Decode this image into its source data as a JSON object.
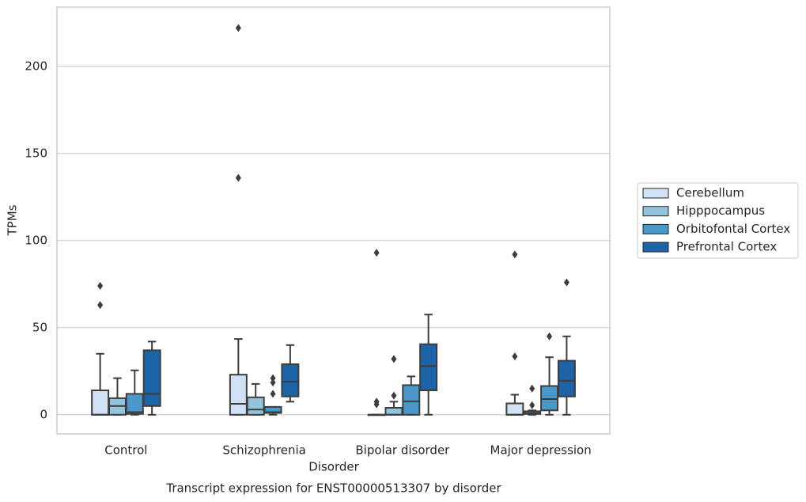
{
  "chart_data": {
    "type": "box",
    "title": "Transcript expression for ENST00000513307 by disorder",
    "xlabel": "Disorder",
    "ylabel": "TPMs",
    "categories": [
      "Control",
      "Schizophrenia",
      "Bipolar disorder",
      "Major depression"
    ],
    "ylim": [
      -11,
      234
    ],
    "yticks": [
      0,
      50,
      100,
      150,
      200
    ],
    "grid": true,
    "legend": "right",
    "series": [
      {
        "name": "Cerebellum",
        "color": "#cfe1f2",
        "values": [
          {
            "low": 0,
            "q1": 0,
            "median": 0,
            "q3": 14,
            "high": 35,
            "outliers": [
              74,
              63
            ]
          },
          {
            "low": 0,
            "q1": 0,
            "median": 6.3,
            "q3": 23,
            "high": 43.5,
            "outliers": [
              222,
              136
            ]
          },
          {
            "low": 0,
            "q1": 0,
            "median": 0,
            "q3": 0,
            "high": 0,
            "outliers": [
              93,
              7.5,
              6
            ]
          },
          {
            "low": 0,
            "q1": 0,
            "median": 0,
            "q3": 6.5,
            "high": 11.5,
            "outliers": [
              92,
              33.5
            ]
          }
        ]
      },
      {
        "name": "Hipppocampus",
        "color": "#93c4de",
        "values": [
          {
            "low": 0,
            "q1": 0,
            "median": 5,
            "q3": 9.5,
            "high": 21,
            "outliers": []
          },
          {
            "low": 0,
            "q1": 0,
            "median": 3,
            "q3": 10,
            "high": 17.7,
            "outliers": []
          },
          {
            "low": 0,
            "q1": 0,
            "median": 0,
            "q3": 4,
            "high": 7.5,
            "outliers": [
              32,
              11
            ]
          },
          {
            "low": 0,
            "q1": 0.5,
            "median": 1,
            "q3": 2,
            "high": 2.5,
            "outliers": [
              15,
              5.5
            ]
          }
        ]
      },
      {
        "name": "Orbitofontal Cortex",
        "color": "#4a98c9",
        "values": [
          {
            "low": 0,
            "q1": 0.5,
            "median": 1.5,
            "q3": 12,
            "high": 25.5,
            "outliers": []
          },
          {
            "low": 0,
            "q1": 1,
            "median": 1.5,
            "q3": 4.5,
            "high": 4.5,
            "outliers": [
              21,
              18.5,
              12
            ]
          },
          {
            "low": 0,
            "q1": 0,
            "median": 7.7,
            "q3": 17,
            "high": 22,
            "outliers": []
          },
          {
            "low": 0,
            "q1": 2.5,
            "median": 9,
            "q3": 16.5,
            "high": 33,
            "outliers": [
              45
            ]
          }
        ]
      },
      {
        "name": "Prefrontal Cortex",
        "color": "#1c63a8",
        "values": [
          {
            "low": 0,
            "q1": 5,
            "median": 12,
            "q3": 37,
            "high": 42,
            "outliers": []
          },
          {
            "low": 7.5,
            "q1": 10.5,
            "median": 19,
            "q3": 29,
            "high": 40,
            "outliers": []
          },
          {
            "low": 0,
            "q1": 14,
            "median": 28,
            "q3": 40.5,
            "high": 57.5,
            "outliers": []
          },
          {
            "low": 0,
            "q1": 10.5,
            "median": 19.5,
            "q3": 31,
            "high": 45,
            "outliers": [
              76
            ]
          }
        ]
      }
    ]
  }
}
